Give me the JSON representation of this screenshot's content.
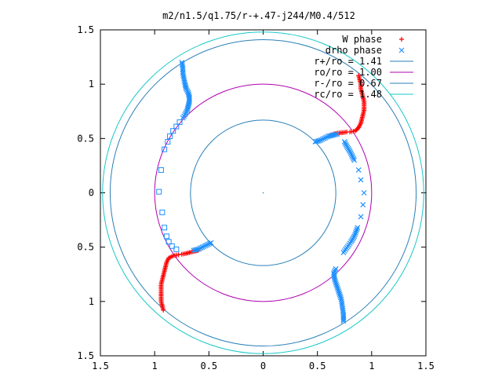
{
  "chart_data": {
    "type": "scatter",
    "title": "m2/n1.5/q1.75/r-+.47-j244/M0.4/512",
    "xlabel": "",
    "ylabel": "",
    "xlim": [
      -1.5,
      1.5
    ],
    "ylim": [
      -1.5,
      1.5
    ],
    "x_ticks": [
      -1.5,
      -1,
      -0.5,
      0,
      0.5,
      1,
      1.5
    ],
    "y_ticks": [
      -1.5,
      -1,
      -0.5,
      0,
      0.5,
      1,
      1.5
    ],
    "x_tick_labels": [
      "1.5",
      "1",
      "0.5",
      "0",
      "0.5",
      "1",
      "1.5"
    ],
    "y_tick_labels": [
      "1.5",
      "1",
      "0.5",
      "0",
      "0.5",
      "1",
      "1.5"
    ],
    "grid": false,
    "legend_position": "top-right",
    "circles": [
      {
        "label": "r+/ro = 1.41",
        "radius": 1.41,
        "color": "#2a7fb8"
      },
      {
        "label": "ro/ro = 1.00",
        "radius": 1.0,
        "color": "#b000b0"
      },
      {
        "label": "r-/ro = 0.67",
        "radius": 0.67,
        "color": "#2a7fb8"
      },
      {
        "label": "rc/ro = 1.48",
        "radius": 1.48,
        "color": "#19c8c8"
      }
    ],
    "series": [
      {
        "name": "W phase",
        "marker": "plus",
        "color": "#ff0000",
        "points": [
          [
            0.8,
            0.56
          ],
          [
            0.85,
            0.57
          ],
          [
            0.88,
            0.6
          ],
          [
            0.9,
            0.64
          ],
          [
            0.91,
            0.68
          ],
          [
            0.92,
            0.72
          ],
          [
            0.93,
            0.76
          ],
          [
            0.93,
            0.8
          ],
          [
            0.93,
            0.84
          ],
          [
            0.92,
            0.88
          ],
          [
            0.91,
            0.92
          ],
          [
            0.9,
            0.96
          ],
          [
            0.9,
            1.0
          ],
          [
            0.89,
            1.04
          ],
          [
            0.88,
            1.08
          ],
          [
            0.62,
            0.53
          ],
          [
            0.66,
            0.545
          ],
          [
            0.7,
            0.55
          ],
          [
            0.74,
            0.555
          ],
          [
            0.77,
            0.56
          ],
          [
            -0.78,
            -0.57
          ],
          [
            -0.83,
            -0.58
          ],
          [
            -0.87,
            -0.6
          ],
          [
            -0.89,
            -0.64
          ],
          [
            -0.9,
            -0.68
          ],
          [
            -0.91,
            -0.72
          ],
          [
            -0.92,
            -0.76
          ],
          [
            -0.93,
            -0.8
          ],
          [
            -0.94,
            -0.84
          ],
          [
            -0.94,
            -0.88
          ],
          [
            -0.94,
            -0.92
          ],
          [
            -0.94,
            -0.96
          ],
          [
            -0.94,
            -1.0
          ],
          [
            -0.93,
            -1.04
          ],
          [
            -0.92,
            -1.08
          ],
          [
            -0.6,
            -0.53
          ],
          [
            -0.64,
            -0.54
          ],
          [
            -0.68,
            -0.55
          ],
          [
            -0.72,
            -0.56
          ],
          [
            -0.75,
            -0.565
          ]
        ]
      },
      {
        "name": "drho phase",
        "marker": "cross",
        "color": "#1e90ff",
        "points": [
          [
            -0.75,
            1.2
          ],
          [
            -0.74,
            1.15
          ],
          [
            -0.74,
            1.1
          ],
          [
            -0.73,
            1.05
          ],
          [
            -0.72,
            1.0
          ],
          [
            -0.71,
            0.96
          ],
          [
            -0.69,
            0.92
          ],
          [
            -0.68,
            0.88
          ],
          [
            -0.68,
            0.84
          ],
          [
            -0.69,
            0.8
          ],
          [
            -0.7,
            0.76
          ],
          [
            -0.72,
            0.72
          ],
          [
            -0.74,
            0.69
          ],
          [
            -0.48,
            -0.46
          ],
          [
            -0.52,
            -0.48
          ],
          [
            -0.56,
            -0.5
          ],
          [
            -0.6,
            -0.52
          ],
          [
            -0.64,
            -0.53
          ],
          [
            0.48,
            0.47
          ],
          [
            0.52,
            0.48
          ],
          [
            0.56,
            0.5
          ],
          [
            0.6,
            0.52
          ],
          [
            0.64,
            0.53
          ],
          [
            0.68,
            0.54
          ],
          [
            0.75,
            0.47
          ],
          [
            0.77,
            0.43
          ],
          [
            0.8,
            0.38
          ],
          [
            0.84,
            0.3
          ],
          [
            0.88,
            0.21
          ],
          [
            0.9,
            0.12
          ],
          [
            0.93,
            0.0
          ],
          [
            0.92,
            -0.11
          ],
          [
            0.9,
            -0.22
          ],
          [
            0.87,
            -0.32
          ],
          [
            0.84,
            -0.4
          ],
          [
            0.81,
            -0.45
          ],
          [
            0.79,
            -0.48
          ],
          [
            0.76,
            -0.52
          ],
          [
            0.74,
            -0.55
          ],
          [
            0.67,
            -0.7
          ],
          [
            0.65,
            -0.74
          ],
          [
            0.66,
            -0.8
          ],
          [
            0.68,
            -0.86
          ],
          [
            0.7,
            -0.92
          ],
          [
            0.72,
            -0.98
          ],
          [
            0.73,
            -1.05
          ],
          [
            0.74,
            -1.12
          ],
          [
            0.74,
            -1.18
          ]
        ]
      },
      {
        "name": "",
        "marker": "square",
        "color": "#1e90ff",
        "points": [
          [
            -0.77,
            0.65
          ],
          [
            -0.8,
            0.61
          ],
          [
            -0.83,
            0.57
          ],
          [
            -0.86,
            0.52
          ],
          [
            -0.88,
            0.47
          ],
          [
            -0.91,
            0.4
          ],
          [
            -0.94,
            0.21
          ],
          [
            -0.96,
            0.01
          ],
          [
            -0.93,
            -0.18
          ],
          [
            -0.91,
            -0.32
          ],
          [
            -0.89,
            -0.4
          ],
          [
            -0.87,
            -0.45
          ],
          [
            -0.84,
            -0.49
          ],
          [
            -0.8,
            -0.52
          ]
        ]
      }
    ],
    "center_point": [
      0,
      0
    ]
  }
}
